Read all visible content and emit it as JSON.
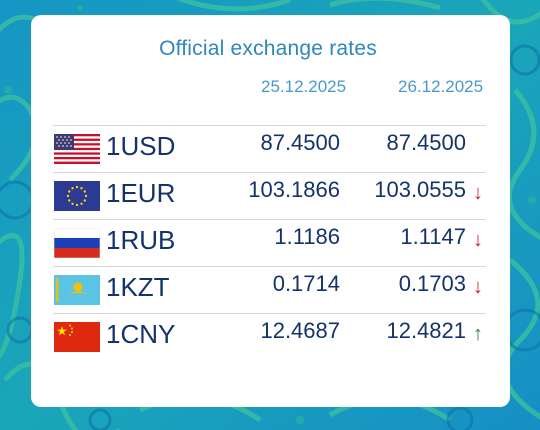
{
  "title": "Official exchange rates",
  "dates": [
    "25.12.2025",
    "26.12.2025"
  ],
  "rows": [
    {
      "code": "1USD",
      "flag": "usa-flag-icon",
      "rate1": "87.4500",
      "rate2": "87.4500",
      "trend": ""
    },
    {
      "code": "1EUR",
      "flag": "eu-flag-icon",
      "rate1": "103.1866",
      "rate2": "103.0555",
      "trend": "↓"
    },
    {
      "code": "1RUB",
      "flag": "russia-flag-icon",
      "rate1": "1.1186",
      "rate2": "1.1147",
      "trend": "↓"
    },
    {
      "code": "1KZT",
      "flag": "kazakhstan-flag-icon",
      "rate1": "0.1714",
      "rate2": "0.1703",
      "trend": "↓"
    },
    {
      "code": "1CNY",
      "flag": "china-flag-icon",
      "rate1": "12.4687",
      "rate2": "12.4821",
      "trend": "↑"
    }
  ],
  "colors": {
    "down": "#c4242f",
    "up": "#2e7d3a",
    "text": "#14336b",
    "accent": "#2f86bd"
  }
}
